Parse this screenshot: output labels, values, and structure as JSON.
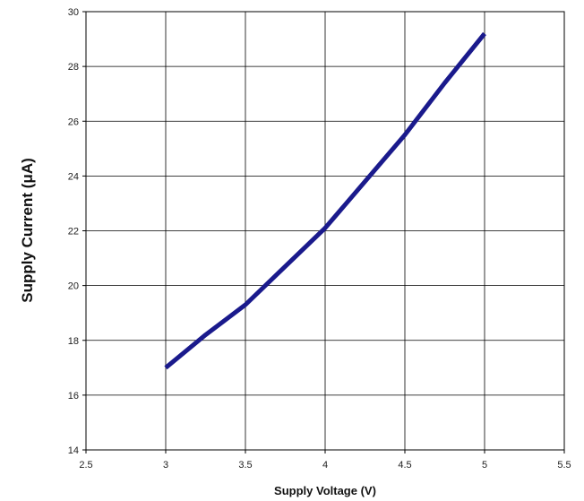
{
  "chart_data": {
    "type": "line",
    "title": "",
    "xlabel": "Supply Voltage (V)",
    "ylabel": "Supply Current (μA)",
    "xlim": [
      2.5,
      5.5
    ],
    "ylim": [
      14,
      30
    ],
    "xticks": [
      "2.5",
      "3",
      "3.5",
      "4",
      "4.5",
      "5",
      "5.5"
    ],
    "yticks": [
      "14",
      "16",
      "18",
      "20",
      "22",
      "24",
      "26",
      "28",
      "30"
    ],
    "grid": true,
    "legend": "none",
    "series": [
      {
        "color": "#1a1a8c",
        "x": [
          3.0,
          3.25,
          3.5,
          3.75,
          4.0,
          4.25,
          4.5,
          4.75,
          5.0
        ],
        "y": [
          17.0,
          18.2,
          19.3,
          20.7,
          22.1,
          23.8,
          25.5,
          27.4,
          29.2
        ]
      }
    ]
  }
}
